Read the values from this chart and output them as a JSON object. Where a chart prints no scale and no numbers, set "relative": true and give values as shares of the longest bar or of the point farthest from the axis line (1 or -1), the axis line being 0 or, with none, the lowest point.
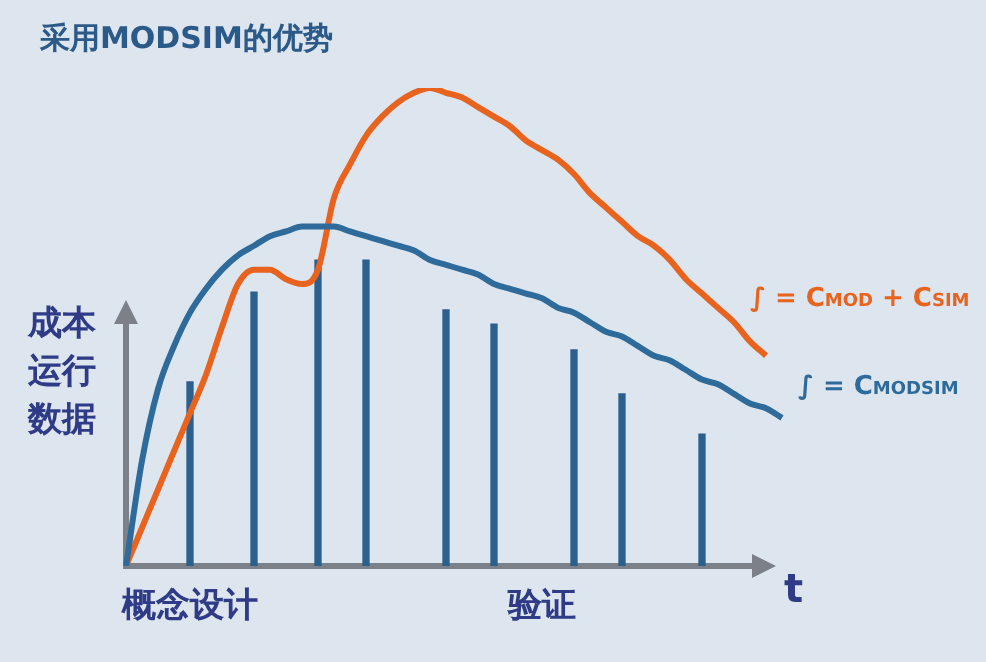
{
  "chart_data": {
    "type": "line",
    "title": "采用MODSIM的优势",
    "ylabel": "成本运行数据",
    "xlabel": "t",
    "relative": true,
    "legend": false,
    "marker": "none",
    "categories": [
      null,
      null,
      null,
      null,
      "概念设计",
      null,
      null,
      null,
      null,
      null,
      null,
      null,
      null,
      null,
      null,
      null,
      null,
      null,
      null,
      null,
      null,
      null,
      null,
      null,
      null,
      null,
      "验证",
      null,
      null,
      null,
      null,
      null,
      null,
      null,
      null,
      null,
      null,
      null,
      null,
      null,
      null,
      null
    ],
    "series": [
      {
        "type": "bar",
        "color": "#2b5f8e",
        "values": [
          null,
          null,
          null,
          null,
          0.385,
          null,
          null,
          null,
          0.573,
          null,
          null,
          null,
          0.64,
          null,
          null,
          0.64,
          null,
          null,
          null,
          null,
          0.536,
          null,
          null,
          0.506,
          null,
          null,
          null,
          null,
          0.452,
          null,
          null,
          0.36,
          null,
          null,
          null,
          null,
          0.276,
          null,
          null,
          null,
          null,
          null
        ]
      },
      {
        "name": "∫ = C$_{MODSIM}$",
        "color": "#2e6b9b",
        "values": [
          0,
          0.22,
          0.37,
          0.46,
          0.53,
          0.58,
          0.62,
          0.65,
          0.67,
          0.69,
          0.7,
          0.71,
          0.71,
          0.71,
          0.7,
          0.69,
          0.68,
          0.67,
          0.66,
          0.64,
          0.63,
          0.62,
          0.61,
          0.59,
          0.58,
          0.57,
          0.56,
          0.54,
          0.53,
          0.51,
          0.49,
          0.48,
          0.46,
          0.44,
          0.43,
          0.41,
          0.39,
          0.38,
          0.36,
          0.34,
          0.33,
          0.31
        ]
      },
      {
        "name": "∫ = C$_{MOD}$ + C$_{SIM}$",
        "color": "#e8631d",
        "values": [
          0,
          0.08,
          0.16,
          0.24,
          0.32,
          0.4,
          0.5,
          0.59,
          0.62,
          0.62,
          0.6,
          0.59,
          0.62,
          0.77,
          0.84,
          0.9,
          0.94,
          0.97,
          0.99,
          1,
          0.99,
          0.98,
          0.96,
          0.94,
          0.92,
          0.89,
          0.87,
          0.85,
          0.82,
          0.78,
          0.75,
          0.72,
          0.69,
          0.67,
          0.64,
          0.6,
          0.57,
          0.54,
          0.51,
          0.47,
          0.44,
          null
        ]
      }
    ]
  }
}
